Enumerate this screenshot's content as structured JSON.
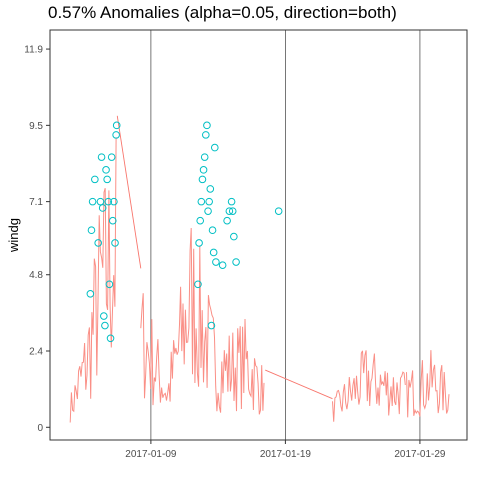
{
  "chart_data": {
    "type": "line",
    "title": "0.57% Anomalies (alpha=0.05, direction=both)",
    "xlabel": "",
    "ylabel": "windg",
    "xlim": [
      "2017-01-01T12:00",
      "2017-02-01T12:00"
    ],
    "ylim": [
      -0.4,
      12.5
    ],
    "y_ticks": [
      0,
      2.4,
      4.8,
      7.1,
      9.5,
      11.9
    ],
    "x_ticks": [
      "2017-01-09",
      "2017-01-19",
      "2017-01-29"
    ],
    "grid": "vertical lines at date ticks",
    "colors": {
      "line": "#F8766D",
      "series_fill": "#FA8F86",
      "anomaly": "#00BFC4",
      "panel_border": "#333333",
      "grid": "#555555"
    },
    "series": [
      {
        "role": "observed",
        "description_points": [
          {
            "x": "2017-01-03T00:00",
            "y": 1.0
          },
          {
            "x": "2017-01-04T06:00",
            "y": 3.5
          },
          {
            "x": "2017-01-05T06:00",
            "y": 7.5
          },
          {
            "x": "2017-01-06T12:00",
            "y": 9.8
          },
          {
            "x": "2017-01-08T06:00",
            "y": 5.0
          },
          {
            "x": "2017-01-10T06:00",
            "y": 1.8
          },
          {
            "x": "2017-01-12T00:00",
            "y": 7.0
          },
          {
            "x": "2017-01-14T00:00",
            "y": 3.0
          },
          {
            "x": "2017-01-16T00:00",
            "y": 3.5
          },
          {
            "x": "2017-01-17T12:00",
            "y": 1.8
          },
          {
            "x": "2017-01-19T12:00",
            "y": 1.4
          },
          {
            "x": "2017-01-22T12:00",
            "y": 0.9
          },
          {
            "x": "2017-01-25T00:00",
            "y": 2.6
          },
          {
            "x": "2017-01-28T00:00",
            "y": 1.8
          },
          {
            "x": "2017-01-30T00:00",
            "y": 2.5
          },
          {
            "x": "2017-01-31T06:00",
            "y": 1.5
          }
        ]
      },
      {
        "role": "anomalies",
        "points": [
          {
            "x": "2017-01-04T12:00",
            "y": 4.2
          },
          {
            "x": "2017-01-04T14:00",
            "y": 6.2
          },
          {
            "x": "2017-01-04T16:00",
            "y": 7.1
          },
          {
            "x": "2017-01-04T20:00",
            "y": 7.8
          },
          {
            "x": "2017-01-05T02:00",
            "y": 5.8
          },
          {
            "x": "2017-01-05T06:00",
            "y": 7.1
          },
          {
            "x": "2017-01-05T08:00",
            "y": 8.5
          },
          {
            "x": "2017-01-05T10:00",
            "y": 6.9
          },
          {
            "x": "2017-01-05T12:00",
            "y": 3.5
          },
          {
            "x": "2017-01-05T14:00",
            "y": 3.2
          },
          {
            "x": "2017-01-05T16:00",
            "y": 8.1
          },
          {
            "x": "2017-01-05T18:00",
            "y": 7.8
          },
          {
            "x": "2017-01-05T20:00",
            "y": 7.1
          },
          {
            "x": "2017-01-05T22:00",
            "y": 4.5
          },
          {
            "x": "2017-01-06T00:00",
            "y": 2.8
          },
          {
            "x": "2017-01-06T02:00",
            "y": 8.5
          },
          {
            "x": "2017-01-06T04:00",
            "y": 6.5
          },
          {
            "x": "2017-01-06T06:00",
            "y": 7.1
          },
          {
            "x": "2017-01-06T08:00",
            "y": 5.8
          },
          {
            "x": "2017-01-06T10:00",
            "y": 9.2
          },
          {
            "x": "2017-01-06T11:00",
            "y": 9.5
          },
          {
            "x": "2017-01-12T12:00",
            "y": 4.5
          },
          {
            "x": "2017-01-12T14:00",
            "y": 5.8
          },
          {
            "x": "2017-01-12T16:00",
            "y": 6.5
          },
          {
            "x": "2017-01-12T18:00",
            "y": 7.1
          },
          {
            "x": "2017-01-12T20:00",
            "y": 7.8
          },
          {
            "x": "2017-01-12T22:00",
            "y": 8.1
          },
          {
            "x": "2017-01-13T00:00",
            "y": 8.5
          },
          {
            "x": "2017-01-13T02:00",
            "y": 9.2
          },
          {
            "x": "2017-01-13T04:00",
            "y": 9.5
          },
          {
            "x": "2017-01-13T06:00",
            "y": 6.8
          },
          {
            "x": "2017-01-13T08:00",
            "y": 7.1
          },
          {
            "x": "2017-01-13T10:00",
            "y": 7.5
          },
          {
            "x": "2017-01-13T12:00",
            "y": 3.2
          },
          {
            "x": "2017-01-13T14:00",
            "y": 6.2
          },
          {
            "x": "2017-01-13T16:00",
            "y": 5.5
          },
          {
            "x": "2017-01-13T18:00",
            "y": 8.8
          },
          {
            "x": "2017-01-13T20:00",
            "y": 5.2
          },
          {
            "x": "2017-01-14T08:00",
            "y": 5.1
          },
          {
            "x": "2017-01-14T16:00",
            "y": 6.5
          },
          {
            "x": "2017-01-14T20:00",
            "y": 6.8
          },
          {
            "x": "2017-01-15T00:00",
            "y": 7.1
          },
          {
            "x": "2017-01-15T02:00",
            "y": 6.8
          },
          {
            "x": "2017-01-15T04:00",
            "y": 6.0
          },
          {
            "x": "2017-01-15T08:00",
            "y": 5.2
          },
          {
            "x": "2017-01-18T12:00",
            "y": 6.8
          }
        ]
      }
    ]
  }
}
